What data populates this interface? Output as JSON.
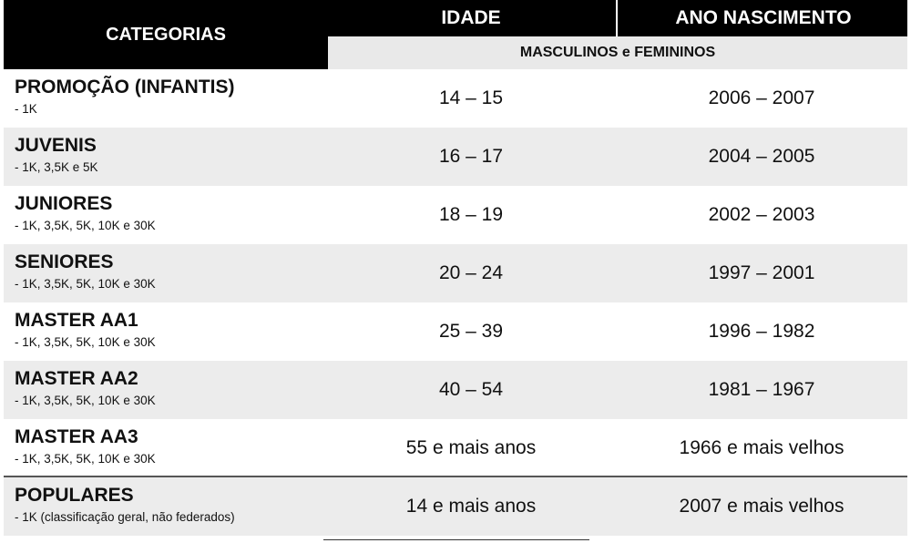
{
  "header": {
    "categorias": "CATEGORIAS",
    "idade": "IDADE",
    "ano_nascimento": "ANO NASCIMENTO",
    "subheader": "MASCULINOS e FEMININOS"
  },
  "rows": [
    {
      "name": "PROMOÇÃO (INFANTIS)",
      "distances": "- 1K",
      "idade": "14 – 15",
      "ano": "2006 – 2007"
    },
    {
      "name": "JUVENIS",
      "distances": "- 1K, 3,5K e 5K",
      "idade": "16 – 17",
      "ano": "2004 – 2005"
    },
    {
      "name": "JUNIORES",
      "distances": "- 1K, 3,5K, 5K, 10K e 30K",
      "idade": "18 – 19",
      "ano": "2002 – 2003"
    },
    {
      "name": "SENIORES",
      "distances": "- 1K, 3,5K, 5K, 10K e 30K",
      "idade": "20 – 24",
      "ano": "1997 – 2001"
    },
    {
      "name": "MASTER AA1",
      "distances": "- 1K, 3,5K, 5K, 10K e 30K",
      "idade": "25 – 39",
      "ano": "1996 – 1982"
    },
    {
      "name": "MASTER AA2",
      "distances": "- 1K, 3,5K, 5K, 10K e 30K",
      "idade": "40 – 54",
      "ano": "1981 – 1967"
    },
    {
      "name": "MASTER AA3",
      "distances": "- 1K, 3,5K, 5K, 10K e 30K",
      "idade": "55 e mais anos",
      "ano": "1966 e mais velhos"
    },
    {
      "name": "POPULARES",
      "distances": "- 1K (classificação geral, não federados)",
      "idade": "14 e mais anos",
      "ano": "2007 e mais velhos"
    }
  ]
}
